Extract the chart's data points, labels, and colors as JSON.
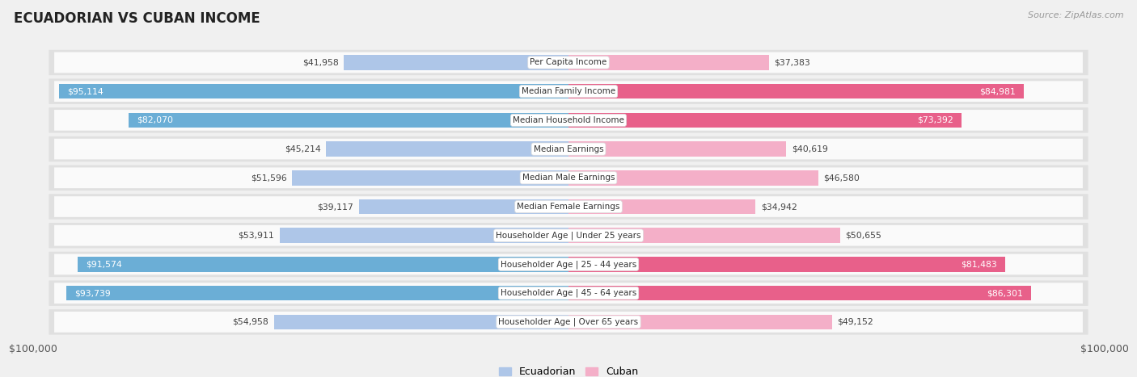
{
  "title": "ECUADORIAN VS CUBAN INCOME",
  "source": "Source: ZipAtlas.com",
  "categories": [
    "Per Capita Income",
    "Median Family Income",
    "Median Household Income",
    "Median Earnings",
    "Median Male Earnings",
    "Median Female Earnings",
    "Householder Age | Under 25 years",
    "Householder Age | 25 - 44 years",
    "Householder Age | 45 - 64 years",
    "Householder Age | Over 65 years"
  ],
  "ecuadorian": [
    41958,
    95114,
    82070,
    45214,
    51596,
    39117,
    53911,
    91574,
    93739,
    54958
  ],
  "cuban": [
    37383,
    84981,
    73392,
    40619,
    46580,
    34942,
    50655,
    81483,
    86301,
    49152
  ],
  "max_val": 100000,
  "ecuadorian_light": "#aec6e8",
  "ecuadorian_dark": "#6baed6",
  "cuban_light": "#f4afc8",
  "cuban_dark": "#e8608a",
  "bg_color": "#f0f0f0",
  "row_outer_color": "#e0e0e0",
  "row_inner_color": "#fafafa",
  "legend_ecuadorian": "Ecuadorian",
  "legend_cuban": "Cuban",
  "dark_threshold": 65000
}
